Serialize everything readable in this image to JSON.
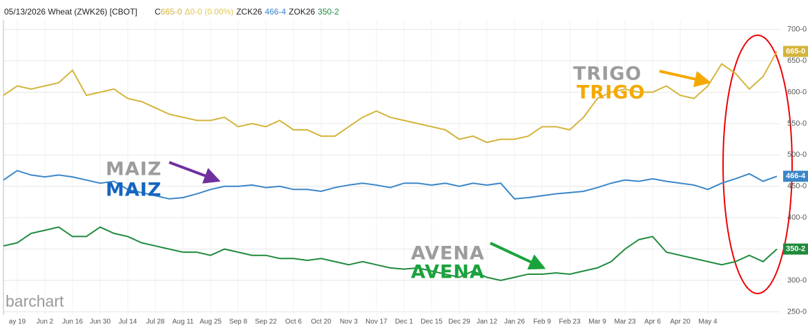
{
  "chart_data": {
    "type": "line",
    "title": "05/13/2026 Wheat (ZWK26) [CBOT]",
    "logo": "barchart",
    "categories": [
      null,
      "ay 19",
      null,
      "Jun 2",
      null,
      "Jun 16",
      null,
      "Jun 30",
      null,
      "Jul 14",
      null,
      "Jul 28",
      null,
      "Aug 11",
      null,
      "Aug 25",
      null,
      "Sep 8",
      null,
      "Sep 22",
      null,
      "Oct 6",
      null,
      "Oct 20",
      null,
      "Nov 3",
      null,
      "Nov 17",
      null,
      "Dec 1",
      null,
      "Dec 15",
      null,
      "Dec 29",
      null,
      "Jan 12",
      null,
      "Jan 26",
      null,
      "Feb 9",
      null,
      "Feb 23",
      null,
      "Mar 9",
      null,
      "Mar 23",
      null,
      "Apr 6",
      null,
      "Apr 20",
      null,
      "May 4",
      null,
      null,
      null,
      null,
      null
    ],
    "series": [
      {
        "name": "C",
        "last_label": "665-0",
        "change": "Δ0-0 (0.00%)",
        "color": "#d4b43a",
        "values": [
          595,
          610,
          605,
          610,
          615,
          635,
          595,
          600,
          605,
          590,
          585,
          575,
          565,
          560,
          555,
          555,
          560,
          545,
          550,
          545,
          555,
          540,
          540,
          530,
          530,
          545,
          560,
          570,
          560,
          555,
          550,
          545,
          540,
          525,
          530,
          520,
          525,
          525,
          530,
          545,
          545,
          540,
          560,
          590,
          600,
          605,
          600,
          600,
          610,
          595,
          590,
          610,
          645,
          630,
          605,
          625,
          665
        ]
      },
      {
        "name": "ZCK26",
        "last_label": "466-4",
        "color": "#3a86c8",
        "values": [
          460,
          475,
          468,
          465,
          468,
          465,
          460,
          455,
          458,
          445,
          440,
          435,
          430,
          432,
          438,
          445,
          450,
          450,
          452,
          448,
          450,
          445,
          445,
          442,
          448,
          452,
          455,
          452,
          448,
          455,
          455,
          452,
          455,
          450,
          455,
          452,
          455,
          430,
          432,
          435,
          438,
          440,
          442,
          448,
          455,
          460,
          458,
          462,
          458,
          455,
          452,
          445,
          455,
          462,
          470,
          458,
          466
        ]
      },
      {
        "name": "ZOK26",
        "last_label": "350-2",
        "color": "#1f8a3c",
        "values": [
          355,
          360,
          375,
          380,
          385,
          370,
          370,
          385,
          375,
          370,
          360,
          355,
          350,
          345,
          345,
          340,
          350,
          345,
          340,
          340,
          335,
          335,
          332,
          335,
          330,
          325,
          330,
          325,
          320,
          318,
          320,
          315,
          310,
          305,
          315,
          305,
          300,
          305,
          310,
          310,
          312,
          310,
          315,
          320,
          330,
          350,
          365,
          370,
          345,
          340,
          335,
          330,
          325,
          330,
          340,
          330,
          350
        ]
      }
    ],
    "annotations": [
      {
        "text": "TRIGO",
        "color": "#9c9c9c"
      },
      {
        "text": "TRIGO",
        "color": "#f5a800"
      },
      {
        "text": "MAIZ",
        "color": "#9c9c9c"
      },
      {
        "text": "MAIZ",
        "color": "#1565c0"
      },
      {
        "text": "AVENA",
        "color": "#9c9c9c"
      },
      {
        "text": "AVENA",
        "color": "#1aa33c"
      }
    ],
    "ylim": [
      245,
      715
    ],
    "yticks": [
      {
        "value": 250,
        "label": "250-0"
      },
      {
        "value": 300,
        "label": "300-0"
      },
      {
        "value": 350,
        "label": "350-0"
      },
      {
        "value": 400,
        "label": "400-0"
      },
      {
        "value": 450,
        "label": "450-0"
      },
      {
        "value": 500,
        "label": "500-0"
      },
      {
        "value": 550,
        "label": "550-0"
      },
      {
        "value": 600,
        "label": "600-0"
      },
      {
        "value": 650,
        "label": "650-0"
      },
      {
        "value": 700,
        "label": "700-0"
      }
    ],
    "grid": true
  }
}
